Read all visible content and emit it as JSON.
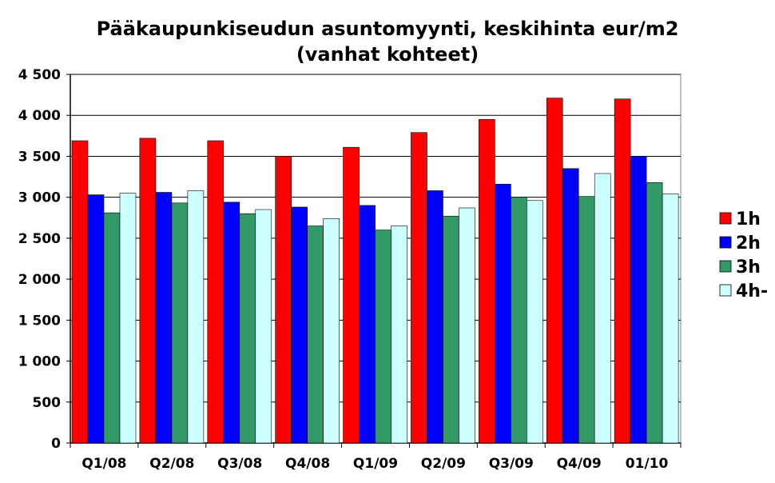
{
  "chart_data": {
    "type": "bar",
    "title": "Pääkaupunkiseudun asuntomyynti, keskihinta eur/m2",
    "subtitle": "(vanhat kohteet)",
    "categories": [
      "Q1/08",
      "Q2/08",
      "Q3/08",
      "Q4/08",
      "Q1/09",
      "Q2/09",
      "Q3/09",
      "Q4/09",
      "01/10"
    ],
    "series": [
      {
        "name": "1h",
        "color": "#ff0000",
        "values": [
          3690,
          3720,
          3690,
          3500,
          3610,
          3790,
          3950,
          4210,
          4200
        ]
      },
      {
        "name": "2h",
        "color": "#0000ff",
        "values": [
          3030,
          3060,
          2940,
          2880,
          2900,
          3080,
          3160,
          3350,
          3500
        ]
      },
      {
        "name": "3h",
        "color": "#339966",
        "values": [
          2810,
          2930,
          2800,
          2650,
          2600,
          2770,
          3000,
          3010,
          3180
        ]
      },
      {
        "name": "4h-",
        "color": "#ccffff",
        "values": [
          3050,
          3080,
          2850,
          2740,
          2650,
          2870,
          2960,
          3290,
          3040
        ]
      }
    ],
    "ylim": [
      0,
      4500
    ],
    "yticks": [
      0,
      500,
      1000,
      1500,
      2000,
      2500,
      3000,
      3500,
      4000,
      4500
    ],
    "ytick_labels": [
      "0",
      "500",
      "1 000",
      "1 500",
      "2 000",
      "2 500",
      "3 000",
      "3 500",
      "4 000",
      "4 500"
    ],
    "xlabel": "",
    "ylabel": "",
    "grid": true,
    "legend_position": "right"
  }
}
